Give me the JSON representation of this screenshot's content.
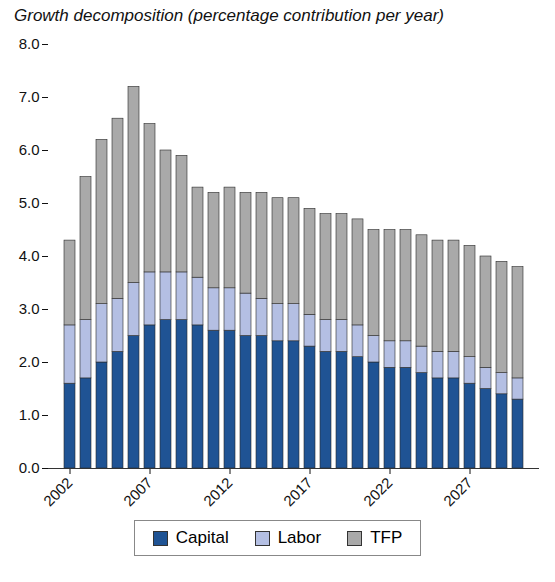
{
  "chart_data": {
    "type": "bar",
    "title": "Growth decomposition (percentage contribution per year)",
    "categories": [
      "2002",
      null,
      null,
      null,
      null,
      "2007",
      null,
      null,
      null,
      null,
      "2012",
      null,
      null,
      null,
      null,
      "2017",
      null,
      null,
      null,
      null,
      "2022",
      null,
      null,
      null,
      null,
      "2027",
      null,
      null,
      null
    ],
    "series": [
      {
        "name": "Capital",
        "color": "#1f5394",
        "values": [
          1.6,
          1.7,
          2.0,
          2.2,
          2.5,
          2.7,
          2.8,
          2.8,
          2.7,
          2.6,
          2.6,
          2.5,
          2.5,
          2.4,
          2.4,
          2.3,
          2.2,
          2.2,
          2.1,
          2.0,
          1.9,
          1.9,
          1.8,
          1.7,
          1.7,
          1.6,
          1.5,
          1.4,
          1.3
        ]
      },
      {
        "name": "Labor",
        "color": "#b4bfe3",
        "values": [
          1.1,
          1.1,
          1.1,
          1.0,
          1.0,
          1.0,
          0.9,
          0.9,
          0.9,
          0.8,
          0.8,
          0.8,
          0.7,
          0.7,
          0.7,
          0.6,
          0.6,
          0.6,
          0.6,
          0.5,
          0.5,
          0.5,
          0.5,
          0.5,
          0.5,
          0.5,
          0.4,
          0.4,
          0.4
        ]
      },
      {
        "name": "TFP",
        "color": "#a9a9a9",
        "values": [
          1.6,
          2.7,
          3.1,
          3.4,
          3.7,
          2.8,
          2.3,
          2.2,
          1.7,
          1.8,
          1.9,
          1.9,
          2.0,
          2.0,
          2.0,
          2.0,
          2.0,
          2.0,
          2.0,
          2.0,
          2.1,
          2.1,
          2.1,
          2.1,
          2.1,
          2.1,
          2.1,
          2.1,
          2.1
        ]
      }
    ],
    "ylim": [
      0,
      8
    ],
    "yticks": [
      {
        "value": 0,
        "label": "0.0"
      },
      {
        "value": 1,
        "label": "1.0"
      },
      {
        "value": 2,
        "label": "2.0"
      },
      {
        "value": 3,
        "label": "3.0"
      },
      {
        "value": 4,
        "label": "4.0"
      },
      {
        "value": 5,
        "label": "5.0"
      },
      {
        "value": 6,
        "label": "6.0"
      },
      {
        "value": 7,
        "label": "7.0"
      },
      {
        "value": 8,
        "label": "8.0"
      }
    ],
    "stacked": true,
    "grid": false,
    "legend": "bottom"
  }
}
